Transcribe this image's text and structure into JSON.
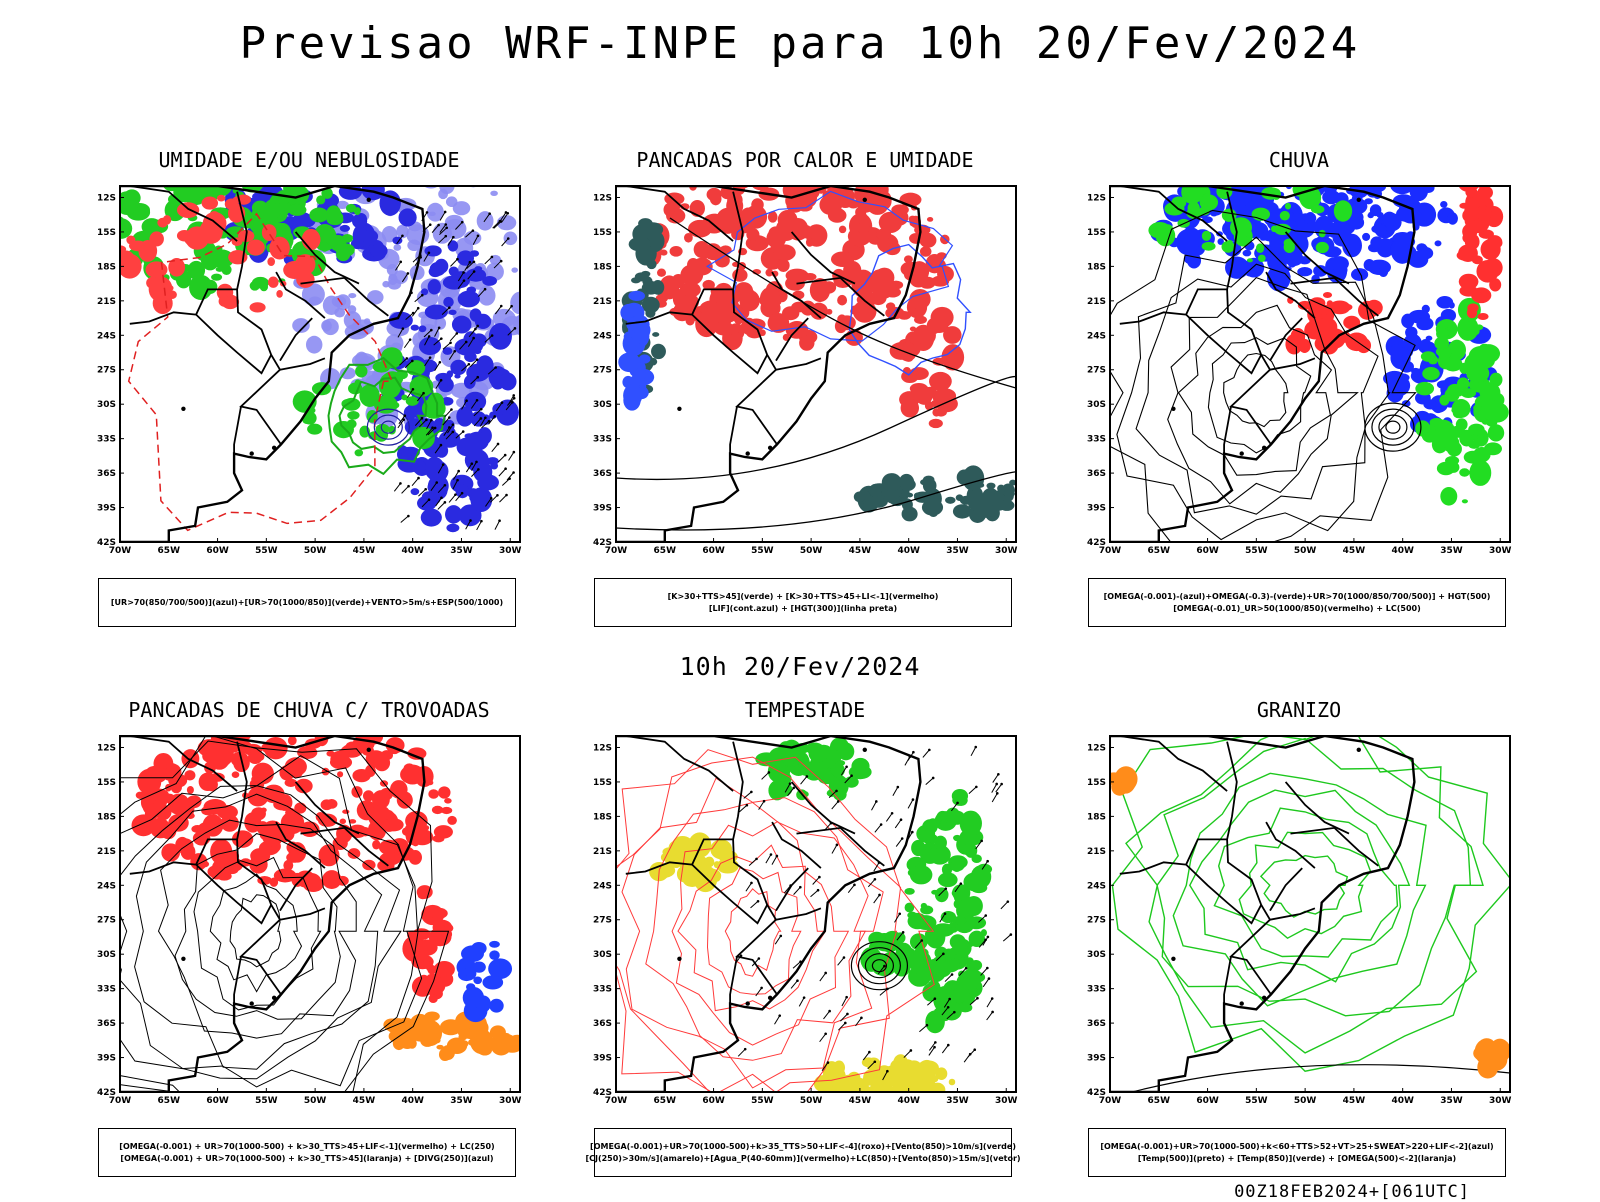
{
  "title": "Previsao WRF-INPE  para 10h 20/Fev/2024",
  "subtitle": "10h 20/Fev/2024",
  "footer": "00Z18FEB2024+[061UTC]",
  "axes": {
    "lat_labels": [
      "12S",
      "15S",
      "18S",
      "21S",
      "24S",
      "27S",
      "30S",
      "33S",
      "36S",
      "39S",
      "42S"
    ],
    "lon_labels": [
      "70W",
      "65W",
      "60W",
      "55W",
      "50W",
      "45W",
      "40W",
      "35W",
      "30W"
    ]
  },
  "panels": [
    {
      "title": "UMIDADE E/OU NEBULOSIDADE",
      "legend": [
        "[UR>70(850/700/500)](azul)+[UR>70(1000/850)](verde)+VENTO>5m/s+ESP(500/1000)"
      ],
      "fill_colors": [
        "#8c8cf2",
        "#2a2ae0",
        "#22cc22",
        "#ff4040"
      ]
    },
    {
      "title": "PANCADAS POR CALOR E UMIDADE",
      "legend": [
        "[K>30+TTS>45](verde) + [K>30+TTS>45+LI<-1](vermelho)",
        "[LIF](cont.azul) + [HGT(300)](linha preta)"
      ],
      "fill_colors": [
        "#f03c3c",
        "#2e5a5a",
        "#3050ff"
      ]
    },
    {
      "title": "CHUVA",
      "legend": [
        "[OMEGA(-0.001)-(azul)+OMEGA(-0.3)-(verde)+UR>70(1000/850/700/500)] + HGT(500)",
        "[OMEGA(-0.01)_UR>50(1000/850)(vermelho) + LC(500)"
      ],
      "fill_colors": [
        "#1a2cff",
        "#22dd22",
        "#ff3030"
      ]
    },
    {
      "title": "PANCADAS DE CHUVA C/ TROVOADAS",
      "legend": [
        "[OMEGA(-0.001) + UR>70(1000-500) + k>30_TTS>45+LIF<-1](vermelho) + LC(250)",
        "[OMEGA(-0.001) + UR>70(1000-500) + k>30_TTS>45](laranja) + [DIVG(250)](azul)"
      ],
      "fill_colors": [
        "#ff3030",
        "#ff8c1a",
        "#2040ff"
      ]
    },
    {
      "title": "TEMPESTADE",
      "legend": [
        "[OMEGA(-0.001)+UR>70(1000-500)+k>35_TTS>50+LIF<-4](roxo)+[Vento(850)>10m/s](verde)",
        "[CJ(250)>30m/s](amarelo)+[Agua_P(40-60mm)](vermelho)+LC(850)+[Vento(850)>15m/s](vetor)"
      ],
      "fill_colors": [
        "#22cc22",
        "#e8dc30",
        "#ff3030"
      ]
    },
    {
      "title": "GRANIZO",
      "legend": [
        "[OMEGA(-0.001)+UR>70(1000-500)+k<60+TTS>52+VT>25+SWEAT>220+LIF<-2](azul)",
        "[Temp(500)](preto) + [Temp(850)](verde) + [OMEGA(500)<-2](laranja)"
      ],
      "fill_colors": [
        "#22cc22",
        "#ff8c1a"
      ]
    }
  ]
}
